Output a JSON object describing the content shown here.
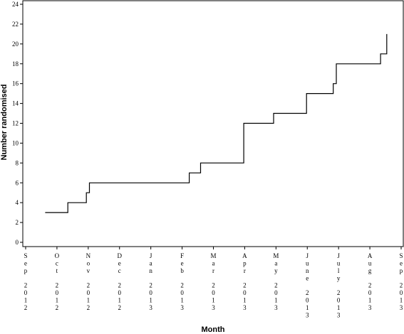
{
  "chart_data": {
    "type": "line",
    "title": "",
    "xlabel": "Month",
    "ylabel": "Number randomised",
    "ylim": [
      0,
      24
    ],
    "y_ticks": [
      0,
      2,
      4,
      6,
      8,
      10,
      12,
      14,
      16,
      18,
      20,
      22,
      24
    ],
    "x_ticks": [
      {
        "month": "Sep",
        "year": "2012"
      },
      {
        "month": "Oct",
        "year": "2012"
      },
      {
        "month": "Nov",
        "year": "2012"
      },
      {
        "month": "Dec",
        "year": "2012"
      },
      {
        "month": "Jan",
        "year": "2013"
      },
      {
        "month": "Feb",
        "year": "2013"
      },
      {
        "month": "Mar",
        "year": "2013"
      },
      {
        "month": "Apr",
        "year": "2013"
      },
      {
        "month": "May",
        "year": "2013"
      },
      {
        "month": "June",
        "year": "2013"
      },
      {
        "month": "July",
        "year": "2013"
      },
      {
        "month": "Aug",
        "year": "2013"
      },
      {
        "month": "Sep",
        "year": "2013"
      }
    ],
    "grid": false,
    "step": true,
    "series": [
      {
        "x": [
          "2012-09-20",
          "2012-10-12",
          "2012-10-30",
          "2012-11-02",
          "2013-02-07",
          "2013-02-18",
          "2013-04-01",
          "2013-04-30",
          "2013-06-01",
          "2013-06-27",
          "2013-06-30",
          "2013-08-12",
          "2013-08-18"
        ],
        "y": [
          3,
          4,
          5,
          6,
          7,
          8,
          12,
          13,
          15,
          16,
          18,
          19,
          21
        ],
        "x_end": "2013-08-18"
      }
    ]
  }
}
